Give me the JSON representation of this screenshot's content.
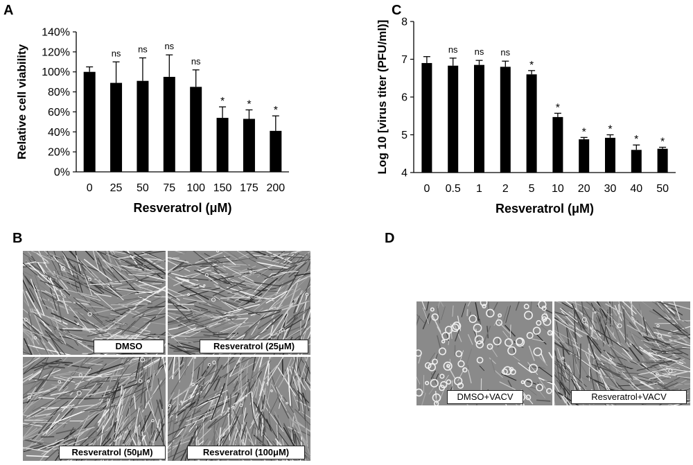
{
  "panels": {
    "a": {
      "letter": "A"
    },
    "b": {
      "letter": "B"
    },
    "c": {
      "letter": "C"
    },
    "d": {
      "letter": "D"
    }
  },
  "chart_data": [
    {
      "type": "bar",
      "title": "",
      "xlabel": "Resveratrol (μM)",
      "ylabel": "Relative cell viability",
      "categories": [
        "0",
        "25",
        "50",
        "75",
        "100",
        "150",
        "175",
        "200"
      ],
      "values": [
        100,
        89,
        91,
        95,
        85,
        54,
        53,
        41
      ],
      "errors": [
        5,
        21,
        23,
        22,
        17,
        11,
        9,
        15
      ],
      "annotations": [
        "",
        "ns",
        "ns",
        "ns",
        "ns",
        "*",
        "*",
        "*"
      ],
      "ylim": [
        0,
        140
      ],
      "yticks": [
        "0%",
        "20%",
        "40%",
        "60%",
        "80%",
        "100%",
        "120%",
        "140%"
      ],
      "bar_color": "#000000",
      "grid": false
    },
    {
      "type": "bar",
      "title": "",
      "xlabel": "Resveratrol (μM)",
      "ylabel": "Log 10 [virus titer (PFU/ml)]",
      "categories": [
        "0",
        "0.5",
        "1",
        "2",
        "5",
        "10",
        "20",
        "30",
        "40",
        "50"
      ],
      "values": [
        6.9,
        6.83,
        6.85,
        6.8,
        6.6,
        5.47,
        4.88,
        4.92,
        4.6,
        4.63
      ],
      "errors": [
        0.17,
        0.2,
        0.12,
        0.15,
        0.1,
        0.1,
        0.05,
        0.08,
        0.13,
        0.04
      ],
      "annotations": [
        "",
        "ns",
        "ns",
        "ns",
        "*",
        "*",
        "*",
        "*",
        "*",
        "*"
      ],
      "ylim": [
        4,
        8
      ],
      "yticks": [
        "4",
        "5",
        "6",
        "7",
        "8"
      ],
      "bar_color": "#000000",
      "grid": false
    }
  ],
  "micrographs": {
    "b": [
      {
        "label": "DMSO"
      },
      {
        "label": "Resveratrol (25μM)"
      },
      {
        "label": "Resveratrol (50μM)"
      },
      {
        "label": "Resveratrol (100μM)"
      }
    ],
    "d": [
      {
        "label": "DMSO+VACV"
      },
      {
        "label": "Resveratrol+VACV"
      }
    ]
  }
}
